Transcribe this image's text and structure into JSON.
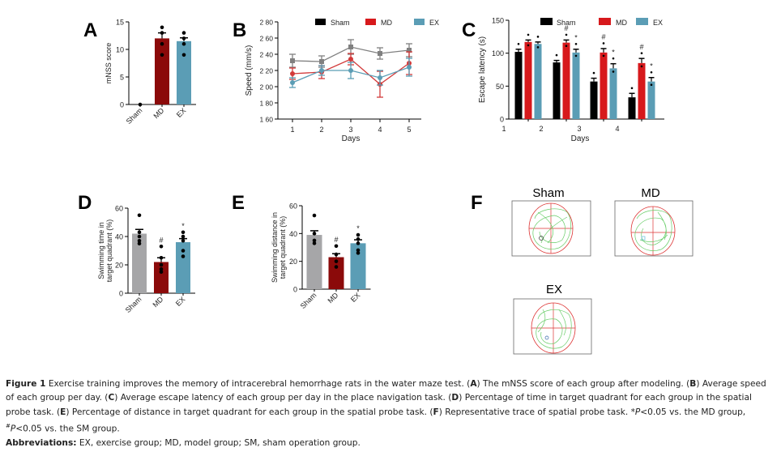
{
  "colors": {
    "sham": "#000000",
    "sham_gray": "#a6a6a8",
    "sham_line": "#808080",
    "md_dark": "#8b0a0a",
    "md_red": "#d7191c",
    "md_line": "#d23a3a",
    "ex": "#5b9db5"
  },
  "chart_data": [
    {
      "panel": "A",
      "type": "bar",
      "title": "",
      "xlabel": "",
      "ylabel": "mNSS score",
      "ylim": [
        0,
        15
      ],
      "yticks": [
        "0",
        "5",
        "10",
        "15"
      ],
      "categories": [
        "Sham",
        "MD",
        "EX"
      ],
      "values": [
        0,
        12,
        11.5
      ],
      "errors": [
        0,
        1.0,
        0.6
      ],
      "points": [
        [
          0
        ],
        [
          14,
          13,
          11,
          9
        ],
        [
          13,
          12,
          11,
          9
        ]
      ],
      "annotations": [
        "",
        "",
        ""
      ]
    },
    {
      "panel": "B",
      "type": "line",
      "title": "",
      "xlabel": "Days",
      "ylabel": "Speed (mm/s)",
      "ylim": [
        160,
        280
      ],
      "yticks": [
        "1 60",
        "1 80",
        "2 00",
        "2 20",
        "2 40",
        "2 60",
        "2 80"
      ],
      "x": [
        1,
        2,
        3,
        4,
        5
      ],
      "xticks": [
        "1",
        "2",
        "3",
        "4",
        "5"
      ],
      "legend": [
        "Sham",
        "MD",
        "EX"
      ],
      "legend_position": "top",
      "series": [
        {
          "name": "Sham",
          "values": [
            232,
            231,
            249,
            241,
            245
          ],
          "errors": [
            8,
            7,
            9,
            7,
            8
          ]
        },
        {
          "name": "MD",
          "values": [
            216,
            218,
            234,
            203,
            229
          ],
          "errors": [
            7,
            8,
            7,
            16,
            14
          ]
        },
        {
          "name": "EX",
          "values": [
            205,
            220,
            220,
            211,
            224
          ],
          "errors": [
            6,
            6,
            10,
            9,
            11
          ]
        }
      ]
    },
    {
      "panel": "C",
      "type": "bar",
      "title": "",
      "xlabel": "Days",
      "ylabel": "Escape latency (s)",
      "ylim": [
        0,
        150
      ],
      "yticks": [
        "0",
        "50",
        "100",
        "150"
      ],
      "xticks": [
        "1",
        "2",
        "3",
        "4"
      ],
      "legend": [
        "Sham",
        "MD",
        "EX"
      ],
      "legend_position": "top",
      "categories": [
        "Day 1",
        "Day 2",
        "Day 3",
        "Day 4"
      ],
      "series": [
        {
          "name": "Sham",
          "values": [
            102,
            86,
            57,
            33
          ],
          "errors": [
            4,
            3,
            5,
            6
          ],
          "annotations": [
            "",
            "",
            "",
            ""
          ]
        },
        {
          "name": "MD",
          "values": [
            117,
            116,
            101,
            85
          ],
          "errors": [
            3,
            4,
            6,
            7
          ],
          "annotations": [
            "",
            "#",
            "#",
            "#"
          ]
        },
        {
          "name": "EX",
          "values": [
            114,
            101,
            77,
            57
          ],
          "errors": [
            3,
            5,
            7,
            6
          ],
          "annotations": [
            "",
            "*",
            "*",
            "*"
          ]
        }
      ]
    },
    {
      "panel": "D",
      "type": "bar",
      "title": "",
      "xlabel": "",
      "ylabel": "Swimming time in target quadrant (%)",
      "ylabel_lines": [
        "Swimming time in",
        "target quadrant (%)"
      ],
      "ylim": [
        0,
        60
      ],
      "yticks": [
        "0",
        "20",
        "40",
        "60"
      ],
      "categories": [
        "Sham",
        "MD",
        "EX"
      ],
      "values": [
        42,
        22,
        36
      ],
      "errors": [
        3,
        3,
        2.5
      ],
      "points": [
        [
          55,
          43,
          40,
          37,
          35
        ],
        [
          33,
          25,
          20,
          17,
          15
        ],
        [
          43,
          40,
          37,
          30,
          26
        ]
      ],
      "annotations": [
        "",
        "#",
        "*"
      ]
    },
    {
      "panel": "E",
      "type": "bar",
      "title": "",
      "xlabel": "",
      "ylabel": "Swimming distance in target quadrant (%)",
      "ylabel_lines": [
        "Swimming distance in",
        "target quadrant (%)"
      ],
      "ylim": [
        0,
        60
      ],
      "yticks": [
        "0",
        "20",
        "40",
        "60"
      ],
      "categories": [
        "Sham",
        "MD",
        "EX"
      ],
      "values": [
        39,
        23,
        33
      ],
      "errors": [
        3,
        2.5,
        2.5
      ],
      "points": [
        [
          53,
          40,
          35,
          33
        ],
        [
          31,
          25,
          20,
          16
        ],
        [
          39,
          36,
          33,
          28,
          26
        ]
      ],
      "annotations": [
        "",
        "#",
        "*"
      ]
    }
  ],
  "panels": {
    "A": "A",
    "B": "B",
    "C": "C",
    "D": "D",
    "E": "E",
    "F": "F"
  },
  "traces": {
    "titles": [
      "Sham",
      "MD",
      "EX"
    ]
  },
  "caption": {
    "figure_label": "Figure 1",
    "line1_a": " Exercise training improves the memory of intracerebral hemorrhage rats in the water maze test. (",
    "A": "A",
    "line1_b": ") The mNSS score of each group after modeling. (",
    "B": "B",
    "line1_c": ") Average speed of each group per day. (",
    "C": "C",
    "line2_a": ") Average escape latency of each group per day in the place navigation task. (",
    "D": "D",
    "line2_b": ") Percentage of time in target quadrant for each group in the spatial probe task. (",
    "E": "E",
    "line3_a": ") Percentage of distance in target quadrant for each group in the spatial probe task. (",
    "F": "F",
    "line3_b": ") Representative trace of spatial probe task. *",
    "P1": "P",
    "line3_c": "<0.05 vs. the MD group, ",
    "hash": "#",
    "P2": "P",
    "line4": "<0.05 vs. the SM group.",
    "abbrev_label": "Abbreviations:",
    "abbrev_text": " EX, exercise group; MD, model group; SM, sham operation group."
  }
}
